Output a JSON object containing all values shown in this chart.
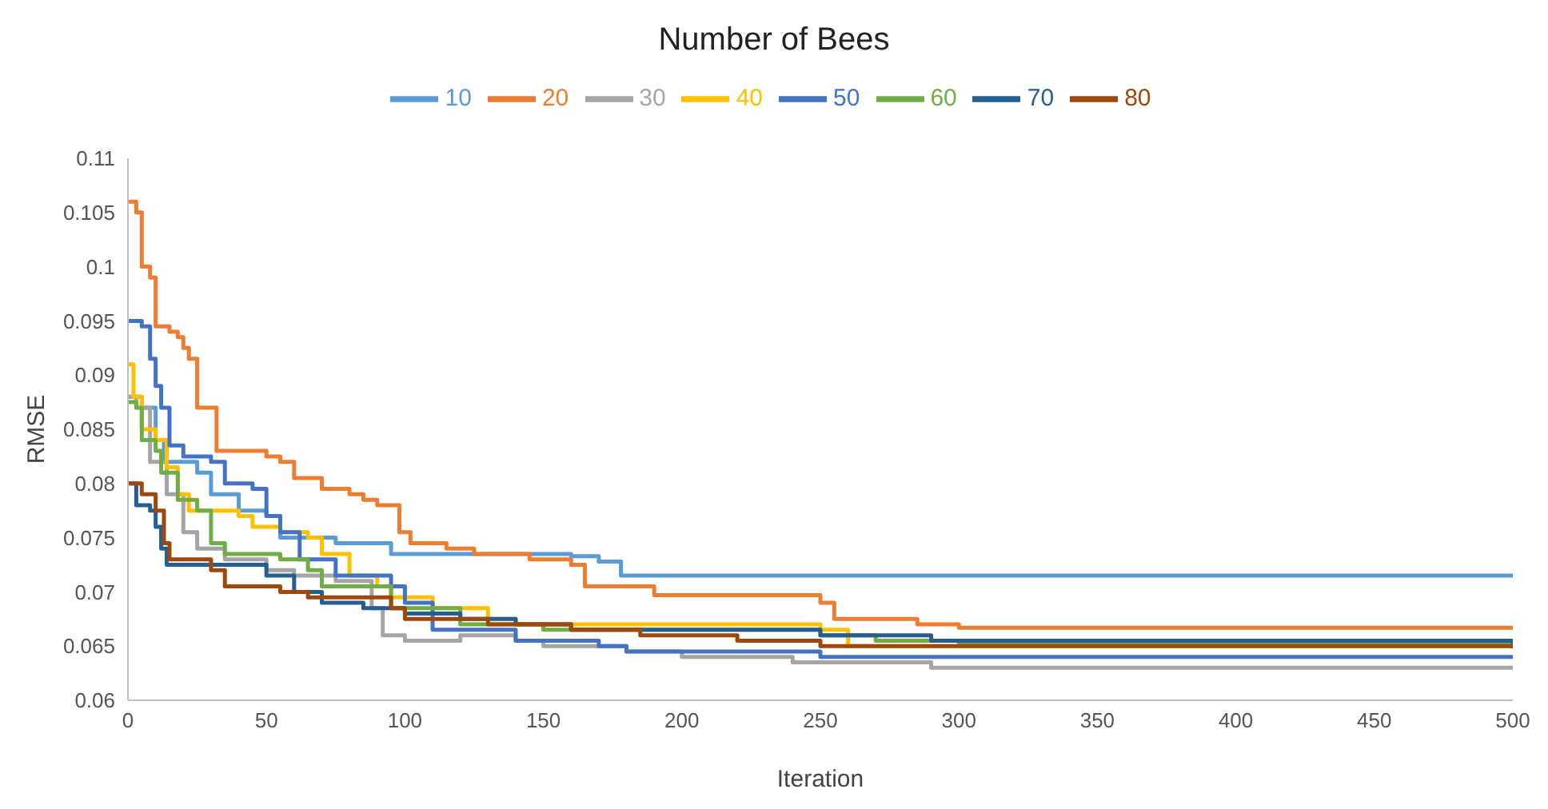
{
  "chart_data": {
    "type": "step",
    "title": "Number of Bees",
    "xlabel": "Iteration",
    "ylabel": "RMSE",
    "legend": "top",
    "grid": false,
    "marker": "none",
    "line_style": "solid",
    "xlim": [
      0,
      500
    ],
    "xticks": [
      0,
      50,
      100,
      150,
      200,
      250,
      300,
      350,
      400,
      450,
      500
    ],
    "ylim": [
      0.06,
      0.11
    ],
    "yticks": [
      0.06,
      0.065,
      0.07,
      0.075,
      0.08,
      0.085,
      0.09,
      0.095,
      0.1,
      0.105,
      0.11
    ],
    "series": [
      {
        "name": "10",
        "color": "#5b9bd5",
        "x": [
          0,
          5,
          10,
          13,
          25,
          30,
          40,
          50,
          55,
          75,
          95,
          160,
          170,
          178,
          500
        ],
        "values": [
          0.088,
          0.087,
          0.084,
          0.082,
          0.081,
          0.079,
          0.0775,
          0.077,
          0.075,
          0.0745,
          0.0735,
          0.0733,
          0.0728,
          0.0715,
          0.0715
        ]
      },
      {
        "name": "20",
        "color": "#ed7d31",
        "x": [
          0,
          3,
          5,
          8,
          10,
          15,
          18,
          20,
          22,
          25,
          32,
          50,
          55,
          60,
          70,
          80,
          85,
          90,
          98,
          102,
          115,
          125,
          145,
          160,
          165,
          190,
          250,
          255,
          285,
          300,
          500
        ],
        "values": [
          0.106,
          0.105,
          0.1,
          0.099,
          0.0945,
          0.094,
          0.0935,
          0.0925,
          0.0915,
          0.087,
          0.083,
          0.0825,
          0.082,
          0.0805,
          0.0795,
          0.079,
          0.0785,
          0.078,
          0.0755,
          0.0745,
          0.074,
          0.0735,
          0.073,
          0.0725,
          0.0705,
          0.0697,
          0.069,
          0.0675,
          0.067,
          0.0667,
          0.0667
        ]
      },
      {
        "name": "30",
        "color": "#a5a5a5",
        "x": [
          0,
          3,
          8,
          14,
          20,
          25,
          35,
          50,
          60,
          75,
          88,
          92,
          100,
          120,
          140,
          150,
          180,
          200,
          240,
          290,
          500
        ],
        "values": [
          0.088,
          0.087,
          0.082,
          0.079,
          0.0755,
          0.074,
          0.073,
          0.072,
          0.0715,
          0.071,
          0.0685,
          0.066,
          0.0655,
          0.066,
          0.0655,
          0.065,
          0.0645,
          0.064,
          0.0635,
          0.063,
          0.063
        ]
      },
      {
        "name": "40",
        "color": "#ffc000",
        "x": [
          0,
          2,
          5,
          10,
          14,
          18,
          22,
          40,
          45,
          55,
          65,
          70,
          80,
          90,
          95,
          110,
          130,
          140,
          250,
          260,
          500
        ],
        "values": [
          0.091,
          0.088,
          0.085,
          0.084,
          0.0815,
          0.079,
          0.0775,
          0.077,
          0.076,
          0.0755,
          0.075,
          0.0735,
          0.0715,
          0.0705,
          0.0695,
          0.0685,
          0.0675,
          0.067,
          0.0665,
          0.065,
          0.065
        ]
      },
      {
        "name": "50",
        "color": "#4472c4",
        "x": [
          0,
          5,
          8,
          10,
          12,
          15,
          20,
          30,
          35,
          45,
          50,
          55,
          62,
          75,
          95,
          100,
          110,
          130,
          140,
          170,
          180,
          250,
          500
        ],
        "values": [
          0.095,
          0.0945,
          0.0915,
          0.089,
          0.087,
          0.0835,
          0.0825,
          0.082,
          0.08,
          0.0795,
          0.077,
          0.0755,
          0.073,
          0.0715,
          0.0705,
          0.069,
          0.0665,
          0.0665,
          0.0655,
          0.065,
          0.0645,
          0.064,
          0.064
        ]
      },
      {
        "name": "60",
        "color": "#70ad47",
        "x": [
          0,
          3,
          5,
          10,
          12,
          18,
          25,
          30,
          35,
          55,
          65,
          70,
          95,
          120,
          150,
          250,
          270,
          300,
          500
        ],
        "values": [
          0.0875,
          0.087,
          0.084,
          0.083,
          0.081,
          0.0785,
          0.0775,
          0.0745,
          0.0735,
          0.073,
          0.072,
          0.0705,
          0.0685,
          0.067,
          0.0665,
          0.066,
          0.0655,
          0.0653,
          0.0653
        ]
      },
      {
        "name": "70",
        "color": "#255e91",
        "x": [
          0,
          3,
          8,
          10,
          12,
          14,
          30,
          50,
          60,
          70,
          85,
          100,
          120,
          140,
          160,
          250,
          290,
          500
        ],
        "values": [
          0.08,
          0.078,
          0.0775,
          0.076,
          0.074,
          0.0725,
          0.0725,
          0.0715,
          0.07,
          0.069,
          0.0685,
          0.068,
          0.0675,
          0.067,
          0.0665,
          0.066,
          0.0655,
          0.0648
        ]
      },
      {
        "name": "80",
        "color": "#9e480e",
        "x": [
          0,
          5,
          10,
          13,
          15,
          30,
          35,
          55,
          65,
          95,
          100,
          130,
          160,
          185,
          220,
          250,
          500
        ],
        "values": [
          0.08,
          0.079,
          0.0775,
          0.0745,
          0.073,
          0.072,
          0.0705,
          0.07,
          0.0695,
          0.0685,
          0.0675,
          0.067,
          0.0665,
          0.066,
          0.0655,
          0.065,
          0.065
        ]
      }
    ]
  }
}
